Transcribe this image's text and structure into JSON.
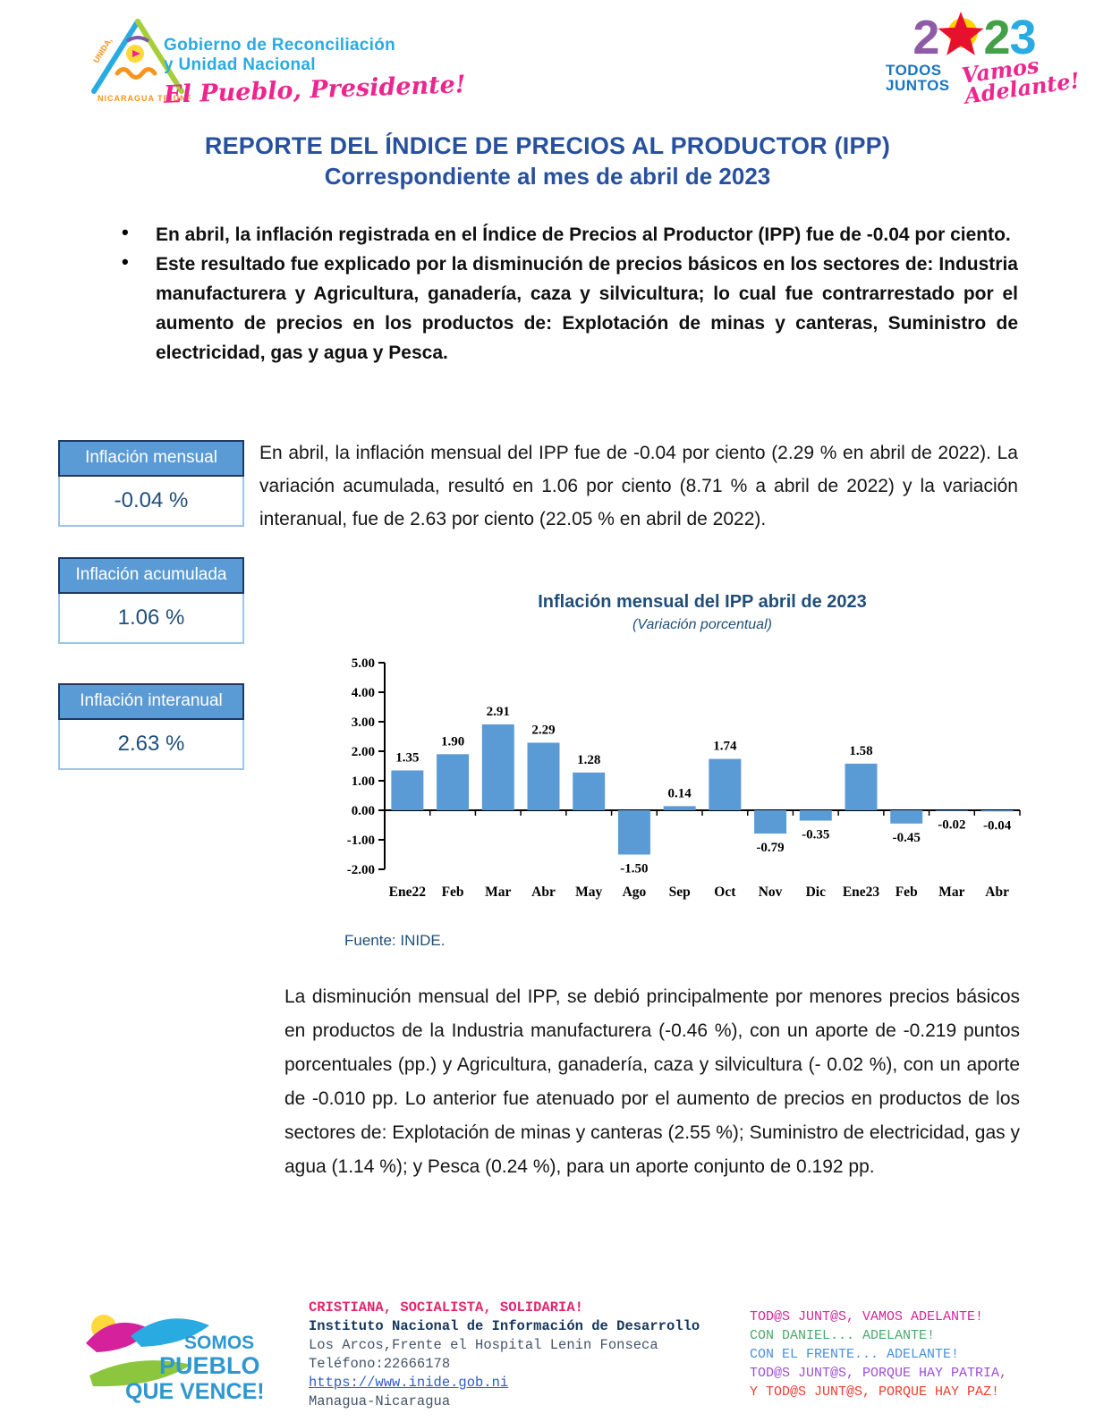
{
  "theme": {
    "accent_blue": "#5B9BD5",
    "navy": "#1F4E79",
    "title_blue": "#27519E",
    "border_navy": "#1F3864",
    "value_border": "#9DC3E6",
    "sky_blue": "#29ABE2",
    "hot_pink": "#EC268F"
  },
  "header": {
    "gov_logo": {
      "line1": "Gobierno de Reconciliación",
      "line2": "y Unidad Nacional",
      "script": "El Pueblo, Presidente!",
      "emblem_left": "UNIDA,",
      "emblem_bottom": "NICARAGUA TRIUNFA!"
    },
    "year_logo": {
      "d1": "2",
      "d3": "2",
      "d4": "3",
      "colors": {
        "d1": "#8E5BA6",
        "d3": "#43A047",
        "d4": "#29ABE2",
        "star_red": "#E8112D",
        "star_yellow": "#FFD200"
      },
      "todos": "TODOS",
      "juntos": "JUNTOS",
      "script1": "Vamos",
      "script2": "Adelante!"
    }
  },
  "title": {
    "line1": "REPORTE DEL ÍNDICE DE PRECIOS AL PRODUCTOR (IPP)",
    "line2": "Correspondiente al mes de abril de 2023"
  },
  "bullets": [
    "En abril, la inflación registrada en el Índice de Precios al Productor (IPP) fue de -0.04 por ciento.",
    "Este resultado fue explicado por la disminución de precios básicos en los sectores de: Industria manufacturera y Agricultura, ganadería, caza y silvicultura; lo cual fue contrarrestado por el aumento de precios en los productos de: Explotación de minas y canteras, Suministro de electricidad, gas y agua y Pesca."
  ],
  "stat_boxes": [
    {
      "label": "Inflación mensual",
      "value": "-0.04 %"
    },
    {
      "label": "Inflación acumulada",
      "value": "1.06 %"
    },
    {
      "label": "Inflación interanual",
      "value": "2.63 %"
    }
  ],
  "paragraph1": "En abril, la inflación mensual del IPP fue de -0.04 por ciento (2.29 % en abril de 2022). La variación acumulada, resultó en 1.06 por ciento (8.71 % a abril de 2022) y la variación interanual, fue de 2.63 por ciento (22.05 % en abril de 2022).",
  "chart_data": {
    "type": "bar",
    "title": "Inflación mensual del IPP abril de 2023",
    "subtitle": "(Variación porcentual)",
    "categories": [
      "Ene22",
      "Feb",
      "Mar",
      "Abr",
      "May",
      "Ago",
      "Sep",
      "Oct",
      "Nov",
      "Dic",
      "Ene23",
      "Feb",
      "Mar",
      "Abr"
    ],
    "values": [
      1.35,
      1.9,
      2.91,
      2.29,
      1.28,
      -1.5,
      0.14,
      1.74,
      -0.79,
      -0.35,
      1.58,
      -0.45,
      -0.02,
      -0.04
    ],
    "labels": [
      "1.35",
      "1.90",
      "2.91",
      "2.29",
      "1.28",
      "-1.50",
      "0.14",
      "1.74",
      "-0.79",
      "-0.35",
      "1.58",
      "-0.45",
      "-0.02",
      "-0.04"
    ],
    "xlabel": "",
    "ylabel": "",
    "ylim": [
      -2,
      5
    ],
    "ytick_step": 1,
    "grid": false,
    "legend": "none",
    "bar_color": "#5B9BD5",
    "axis_color": "#000000",
    "source": "Fuente: INIDE."
  },
  "paragraph2": "La disminución mensual del IPP, se debió principalmente por menores precios básicos en productos de la Industria manufacturera (-0.46 %), con un aporte de -0.219 puntos porcentuales (pp.) y Agricultura, ganadería, caza y silvicultura (- 0.02 %), con un aporte de -0.010 pp. Lo anterior fue atenuado por el aumento de precios en productos de los sectores de: Explotación de minas y canteras (2.55 %); Suministro de electricidad, gas y agua (1.14 %); y Pesca (0.24 %), para un aporte conjunto de 0.192 pp.",
  "footer": {
    "pueblo_logo": {
      "line1": "SOMOS",
      "line2": "PUEBLO",
      "line3": "QUE VENCE!",
      "color": "#2F97D0"
    },
    "center": {
      "slogan": {
        "text": "CRISTIANA, SOCIALISTA, SOLIDARIA!",
        "color": "#E3256B"
      },
      "institute": {
        "text": "Instituto Nacional de Información de Desarrollo",
        "color": "#16365C"
      },
      "address": {
        "text": "Los Arcos,Frente el Hospital Lenin Fonseca",
        "color": "#44546A"
      },
      "phone": {
        "text": "Teléfono:22666178",
        "color": "#44546A"
      },
      "url": {
        "text": "https://www.inide.gob.ni",
        "color": "#2E5CC5"
      },
      "city": {
        "text": "Managua-Nicaragua",
        "color": "#44546A"
      }
    },
    "right": {
      "lines": [
        {
          "text": "TOD@S JUNT@S, VAMOS ADELANTE!",
          "color": "#D62598"
        },
        {
          "text": "CON DANIEL... ADELANTE!",
          "color": "#4CA96B"
        },
        {
          "text": "CON EL FRENTE... ADELANTE!",
          "color": "#4A90D9"
        },
        {
          "text": "TOD@S JUNT@S, PORQUE HAY PATRIA,",
          "color": "#9C4FD4"
        },
        {
          "text": "Y TOD@S JUNT@S, PORQUE HAY PAZ!",
          "color": "#EA3D2F"
        }
      ]
    }
  }
}
